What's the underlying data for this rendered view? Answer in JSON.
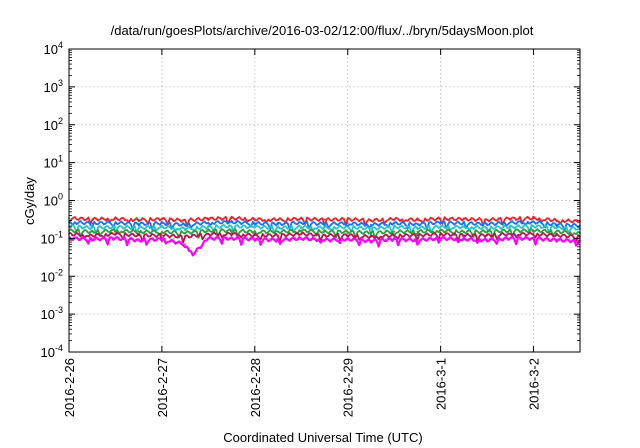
{
  "chart_data": {
    "type": "line",
    "title": "/data/run/goesPlots/archive/2016-03-02/12:00/flux/../bryn/5daysMoon.plot",
    "xlabel": "Coordinated Universal Time (UTC)",
    "ylabel": "cGy/day",
    "yscale": "log",
    "ylim": [
      0.0001,
      10000
    ],
    "yticks": [
      {
        "base": "10",
        "exp": "4",
        "value": 10000
      },
      {
        "base": "10",
        "exp": "3",
        "value": 1000
      },
      {
        "base": "10",
        "exp": "2",
        "value": 100
      },
      {
        "base": "10",
        "exp": "1",
        "value": 10
      },
      {
        "base": "10",
        "exp": "0",
        "value": 1
      },
      {
        "base": "10",
        "exp": "-1",
        "value": 0.1
      },
      {
        "base": "10",
        "exp": "-2",
        "value": 0.01
      },
      {
        "base": "10",
        "exp": "-3",
        "value": 0.001
      },
      {
        "base": "10",
        "exp": "-4",
        "value": 0.0001
      }
    ],
    "xlim": [
      "2016-02-26T00:00",
      "2016-03-02T12:00"
    ],
    "xticks": [
      {
        "label": "2016-2-26",
        "date": "2016-02-26"
      },
      {
        "label": "2016-2-27",
        "date": "2016-02-27"
      },
      {
        "label": "2016-2-28",
        "date": "2016-02-28"
      },
      {
        "label": "2016-2-29",
        "date": "2016-02-29"
      },
      {
        "label": "2016-3-1",
        "date": "2016-03-01"
      },
      {
        "label": "2016-3-2",
        "date": "2016-03-02"
      }
    ],
    "grid": true,
    "legend": "none",
    "series": [
      {
        "color": "#e8232a",
        "values": [
          {
            "x": "2016-02-26T00:00",
            "y": 0.34
          },
          {
            "x": "2016-02-26T06:00",
            "y": 0.32
          },
          {
            "x": "2016-02-26T12:00",
            "y": 0.33
          },
          {
            "x": "2016-02-26T18:00",
            "y": 0.31
          },
          {
            "x": "2016-02-27T00:00",
            "y": 0.32
          },
          {
            "x": "2016-02-27T06:00",
            "y": 0.3
          },
          {
            "x": "2016-02-27T12:00",
            "y": 0.33
          },
          {
            "x": "2016-02-27T18:00",
            "y": 0.34
          },
          {
            "x": "2016-02-28T00:00",
            "y": 0.32
          },
          {
            "x": "2016-02-28T06:00",
            "y": 0.31
          },
          {
            "x": "2016-02-28T12:00",
            "y": 0.33
          },
          {
            "x": "2016-02-28T18:00",
            "y": 0.31
          },
          {
            "x": "2016-02-29T00:00",
            "y": 0.32
          },
          {
            "x": "2016-02-29T06:00",
            "y": 0.3
          },
          {
            "x": "2016-02-29T12:00",
            "y": 0.32
          },
          {
            "x": "2016-02-29T18:00",
            "y": 0.31
          },
          {
            "x": "2016-03-01T00:00",
            "y": 0.33
          },
          {
            "x": "2016-03-01T06:00",
            "y": 0.32
          },
          {
            "x": "2016-03-01T12:00",
            "y": 0.31
          },
          {
            "x": "2016-03-01T18:00",
            "y": 0.33
          },
          {
            "x": "2016-03-02T00:00",
            "y": 0.34
          },
          {
            "x": "2016-03-02T06:00",
            "y": 0.3
          },
          {
            "x": "2016-03-02T12:00",
            "y": 0.28
          }
        ]
      },
      {
        "color": "#1e6fff",
        "values": [
          {
            "x": "2016-02-26T00:00",
            "y": 0.27
          },
          {
            "x": "2016-02-26T06:00",
            "y": 0.25
          },
          {
            "x": "2016-02-26T12:00",
            "y": 0.26
          },
          {
            "x": "2016-02-26T18:00",
            "y": 0.24
          },
          {
            "x": "2016-02-27T00:00",
            "y": 0.25
          },
          {
            "x": "2016-02-27T06:00",
            "y": 0.23
          },
          {
            "x": "2016-02-27T12:00",
            "y": 0.26
          },
          {
            "x": "2016-02-27T18:00",
            "y": 0.27
          },
          {
            "x": "2016-02-28T00:00",
            "y": 0.25
          },
          {
            "x": "2016-02-28T06:00",
            "y": 0.24
          },
          {
            "x": "2016-02-28T12:00",
            "y": 0.26
          },
          {
            "x": "2016-02-28T18:00",
            "y": 0.24
          },
          {
            "x": "2016-02-29T00:00",
            "y": 0.25
          },
          {
            "x": "2016-02-29T06:00",
            "y": 0.23
          },
          {
            "x": "2016-02-29T12:00",
            "y": 0.25
          },
          {
            "x": "2016-02-29T18:00",
            "y": 0.24
          },
          {
            "x": "2016-03-01T00:00",
            "y": 0.26
          },
          {
            "x": "2016-03-01T06:00",
            "y": 0.25
          },
          {
            "x": "2016-03-01T12:00",
            "y": 0.24
          },
          {
            "x": "2016-03-01T18:00",
            "y": 0.26
          },
          {
            "x": "2016-03-02T00:00",
            "y": 0.27
          },
          {
            "x": "2016-03-02T06:00",
            "y": 0.23
          },
          {
            "x": "2016-03-02T12:00",
            "y": 0.22
          }
        ]
      },
      {
        "color": "#22c7c7",
        "values": [
          {
            "x": "2016-02-26T00:00",
            "y": 0.21
          },
          {
            "x": "2016-02-26T06:00",
            "y": 0.19
          },
          {
            "x": "2016-02-26T12:00",
            "y": 0.2
          },
          {
            "x": "2016-02-26T18:00",
            "y": 0.19
          },
          {
            "x": "2016-02-27T00:00",
            "y": 0.2
          },
          {
            "x": "2016-02-27T06:00",
            "y": 0.18
          },
          {
            "x": "2016-02-27T12:00",
            "y": 0.2
          },
          {
            "x": "2016-02-27T18:00",
            "y": 0.21
          },
          {
            "x": "2016-02-28T00:00",
            "y": 0.2
          },
          {
            "x": "2016-02-28T06:00",
            "y": 0.19
          },
          {
            "x": "2016-02-28T12:00",
            "y": 0.2
          },
          {
            "x": "2016-02-28T18:00",
            "y": 0.19
          },
          {
            "x": "2016-02-29T00:00",
            "y": 0.2
          },
          {
            "x": "2016-02-29T06:00",
            "y": 0.18
          },
          {
            "x": "2016-02-29T12:00",
            "y": 0.2
          },
          {
            "x": "2016-02-29T18:00",
            "y": 0.19
          },
          {
            "x": "2016-03-01T00:00",
            "y": 0.2
          },
          {
            "x": "2016-03-01T06:00",
            "y": 0.2
          },
          {
            "x": "2016-03-01T12:00",
            "y": 0.19
          },
          {
            "x": "2016-03-01T18:00",
            "y": 0.2
          },
          {
            "x": "2016-03-02T00:00",
            "y": 0.21
          },
          {
            "x": "2016-03-02T06:00",
            "y": 0.19
          },
          {
            "x": "2016-03-02T12:00",
            "y": 0.18
          }
        ]
      },
      {
        "color": "#2e9e3e",
        "values": [
          {
            "x": "2016-02-26T00:00",
            "y": 0.16
          },
          {
            "x": "2016-02-26T06:00",
            "y": 0.15
          },
          {
            "x": "2016-02-26T12:00",
            "y": 0.16
          },
          {
            "x": "2016-02-26T18:00",
            "y": 0.15
          },
          {
            "x": "2016-02-27T00:00",
            "y": 0.15
          },
          {
            "x": "2016-02-27T06:00",
            "y": 0.14
          },
          {
            "x": "2016-02-27T12:00",
            "y": 0.16
          },
          {
            "x": "2016-02-27T18:00",
            "y": 0.16
          },
          {
            "x": "2016-02-28T00:00",
            "y": 0.15
          },
          {
            "x": "2016-02-28T06:00",
            "y": 0.15
          },
          {
            "x": "2016-02-28T12:00",
            "y": 0.16
          },
          {
            "x": "2016-02-28T18:00",
            "y": 0.15
          },
          {
            "x": "2016-02-29T00:00",
            "y": 0.15
          },
          {
            "x": "2016-02-29T06:00",
            "y": 0.14
          },
          {
            "x": "2016-02-29T12:00",
            "y": 0.15
          },
          {
            "x": "2016-02-29T18:00",
            "y": 0.15
          },
          {
            "x": "2016-03-01T00:00",
            "y": 0.16
          },
          {
            "x": "2016-03-01T06:00",
            "y": 0.15
          },
          {
            "x": "2016-03-01T12:00",
            "y": 0.15
          },
          {
            "x": "2016-03-01T18:00",
            "y": 0.16
          },
          {
            "x": "2016-03-02T00:00",
            "y": 0.16
          },
          {
            "x": "2016-03-02T06:00",
            "y": 0.15
          },
          {
            "x": "2016-03-02T12:00",
            "y": 0.14
          }
        ]
      },
      {
        "color": "#b01a4a",
        "values": [
          {
            "x": "2016-02-26T00:00",
            "y": 0.13
          },
          {
            "x": "2016-02-26T06:00",
            "y": 0.12
          },
          {
            "x": "2016-02-26T12:00",
            "y": 0.13
          },
          {
            "x": "2016-02-26T18:00",
            "y": 0.12
          },
          {
            "x": "2016-02-27T00:00",
            "y": 0.12
          },
          {
            "x": "2016-02-27T06:00",
            "y": 0.11
          },
          {
            "x": "2016-02-27T12:00",
            "y": 0.13
          },
          {
            "x": "2016-02-27T18:00",
            "y": 0.13
          },
          {
            "x": "2016-02-28T00:00",
            "y": 0.12
          },
          {
            "x": "2016-02-28T06:00",
            "y": 0.12
          },
          {
            "x": "2016-02-28T12:00",
            "y": 0.13
          },
          {
            "x": "2016-02-28T18:00",
            "y": 0.12
          },
          {
            "x": "2016-02-29T00:00",
            "y": 0.12
          },
          {
            "x": "2016-02-29T06:00",
            "y": 0.11
          },
          {
            "x": "2016-02-29T12:00",
            "y": 0.12
          },
          {
            "x": "2016-02-29T18:00",
            "y": 0.12
          },
          {
            "x": "2016-03-01T00:00",
            "y": 0.13
          },
          {
            "x": "2016-03-01T06:00",
            "y": 0.12
          },
          {
            "x": "2016-03-01T12:00",
            "y": 0.12
          },
          {
            "x": "2016-03-01T18:00",
            "y": 0.13
          },
          {
            "x": "2016-03-02T00:00",
            "y": 0.13
          },
          {
            "x": "2016-03-02T06:00",
            "y": 0.12
          },
          {
            "x": "2016-03-02T12:00",
            "y": 0.11
          }
        ]
      },
      {
        "color": "#ff00ff",
        "values": [
          {
            "x": "2016-02-26T00:00",
            "y": 0.1
          },
          {
            "x": "2016-02-26T06:00",
            "y": 0.095
          },
          {
            "x": "2016-02-26T12:00",
            "y": 0.1
          },
          {
            "x": "2016-02-26T18:00",
            "y": 0.09
          },
          {
            "x": "2016-02-27T00:00",
            "y": 0.095
          },
          {
            "x": "2016-02-27T06:00",
            "y": 0.07
          },
          {
            "x": "2016-02-27T08:00",
            "y": 0.038
          },
          {
            "x": "2016-02-27T12:00",
            "y": 0.1
          },
          {
            "x": "2016-02-27T18:00",
            "y": 0.1
          },
          {
            "x": "2016-02-28T00:00",
            "y": 0.095
          },
          {
            "x": "2016-02-28T06:00",
            "y": 0.09
          },
          {
            "x": "2016-02-28T12:00",
            "y": 0.1
          },
          {
            "x": "2016-02-28T18:00",
            "y": 0.09
          },
          {
            "x": "2016-02-29T00:00",
            "y": 0.095
          },
          {
            "x": "2016-02-29T06:00",
            "y": 0.085
          },
          {
            "x": "2016-02-29T12:00",
            "y": 0.095
          },
          {
            "x": "2016-02-29T18:00",
            "y": 0.09
          },
          {
            "x": "2016-03-01T00:00",
            "y": 0.1
          },
          {
            "x": "2016-03-01T06:00",
            "y": 0.095
          },
          {
            "x": "2016-03-01T12:00",
            "y": 0.09
          },
          {
            "x": "2016-03-01T18:00",
            "y": 0.1
          },
          {
            "x": "2016-03-02T00:00",
            "y": 0.1
          },
          {
            "x": "2016-03-02T06:00",
            "y": 0.09
          },
          {
            "x": "2016-03-02T12:00",
            "y": 0.085
          }
        ]
      }
    ]
  }
}
